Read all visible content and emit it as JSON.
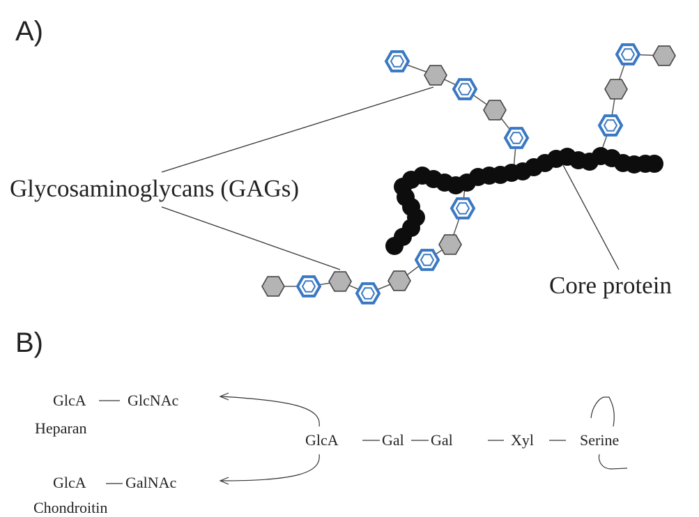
{
  "panel_a": {
    "panel_label": "A)",
    "gag_label": "Glycosaminoglycans (GAGs)",
    "core_label": "Core protein"
  },
  "panel_b": {
    "panel_label": "B)",
    "heparan_glca": "GlcA",
    "heparan_glcnac": "GlcNAc",
    "heparan_name": "Heparan",
    "chondroitin_glca": "GlcA",
    "chondroitin_galnac": "GalNAc",
    "chondroitin_name": "Chondroitin",
    "linker_glca": "GlcA",
    "linker_gal1": "Gal",
    "linker_gal2": "Gal",
    "linker_xyl": "Xyl",
    "linker_serine": "Serine"
  },
  "legend_colors": {
    "core_protein": "#0d0d0d",
    "gray_sugar": "#b4b4b4",
    "blue_sugar": "#3a78c2"
  }
}
